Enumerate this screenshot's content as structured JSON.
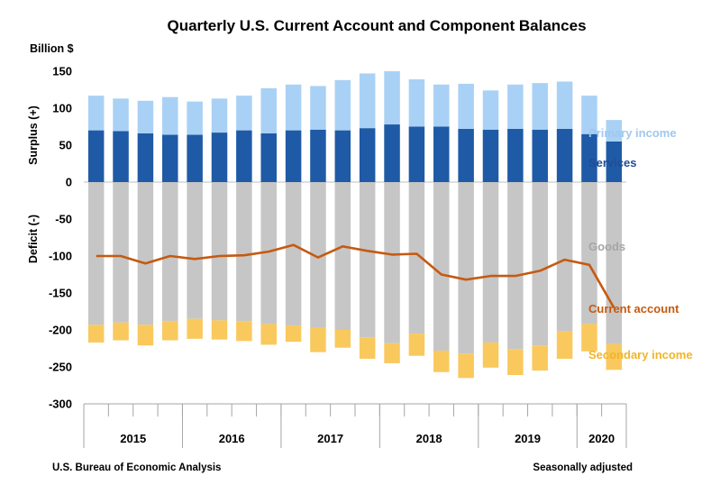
{
  "chart_data": {
    "type": "bar",
    "title": "Quarterly U.S. Current Account and Component Balances",
    "y_unit": "Billion $",
    "surplus_label": "Surplus (+)",
    "deficit_label": "Deficit (-)",
    "ylim": [
      -300,
      150
    ],
    "y_ticks": [
      150,
      100,
      50,
      0,
      -50,
      -100,
      -150,
      -200,
      -250,
      -300
    ],
    "years": [
      {
        "label": "2015",
        "quarters": 4
      },
      {
        "label": "2016",
        "quarters": 4
      },
      {
        "label": "2017",
        "quarters": 4
      },
      {
        "label": "2018",
        "quarters": 4
      },
      {
        "label": "2019",
        "quarters": 4
      },
      {
        "label": "2020",
        "quarters": 2
      }
    ],
    "categories": [
      "2015 Q1",
      "2015 Q2",
      "2015 Q3",
      "2015 Q4",
      "2016 Q1",
      "2016 Q2",
      "2016 Q3",
      "2016 Q4",
      "2017 Q1",
      "2017 Q2",
      "2017 Q3",
      "2017 Q4",
      "2018 Q1",
      "2018 Q2",
      "2018 Q3",
      "2018 Q4",
      "2019 Q1",
      "2019 Q2",
      "2019 Q3",
      "2019 Q4",
      "2020 Q1",
      "2020 Q2"
    ],
    "series": [
      {
        "name": "Services",
        "kind": "bar",
        "color": "#1f5aa6",
        "values": [
          70,
          69,
          66,
          64,
          64,
          67,
          70,
          66,
          70,
          71,
          70,
          73,
          78,
          75,
          75,
          72,
          71,
          72,
          71,
          72,
          65,
          55
        ]
      },
      {
        "name": "Primary income",
        "kind": "bar",
        "color": "#a9d1f5",
        "values": [
          47,
          44,
          44,
          51,
          45,
          46,
          47,
          61,
          62,
          59,
          68,
          74,
          72,
          64,
          57,
          61,
          53,
          60,
          63,
          64,
          52,
          29
        ]
      },
      {
        "name": "Goods",
        "kind": "bar",
        "color": "#c6c6c6",
        "values": [
          -193,
          -190,
          -193,
          -188,
          -185,
          -187,
          -188,
          -192,
          -194,
          -197,
          -200,
          -210,
          -218,
          -205,
          -228,
          -232,
          -217,
          -226,
          -221,
          -202,
          -192,
          -219
        ]
      },
      {
        "name": "Secondary income",
        "kind": "bar",
        "color": "#f9c95d",
        "values": [
          -24,
          -24,
          -28,
          -26,
          -27,
          -26,
          -27,
          -28,
          -22,
          -33,
          -24,
          -29,
          -27,
          -30,
          -29,
          -33,
          -34,
          -35,
          -34,
          -37,
          -37,
          -35
        ]
      },
      {
        "name": "Current account",
        "kind": "line",
        "color": "#c55a11",
        "values": [
          -100,
          -100,
          -110,
          -100,
          -104,
          -100,
          -99,
          -94,
          -85,
          -102,
          -87,
          -93,
          -98,
          -97,
          -125,
          -132,
          -127,
          -127,
          -120,
          -105,
          -112,
          -170
        ]
      }
    ],
    "source": "U.S. Bureau of Economic Analysis",
    "note": "Seasonally adjusted"
  }
}
